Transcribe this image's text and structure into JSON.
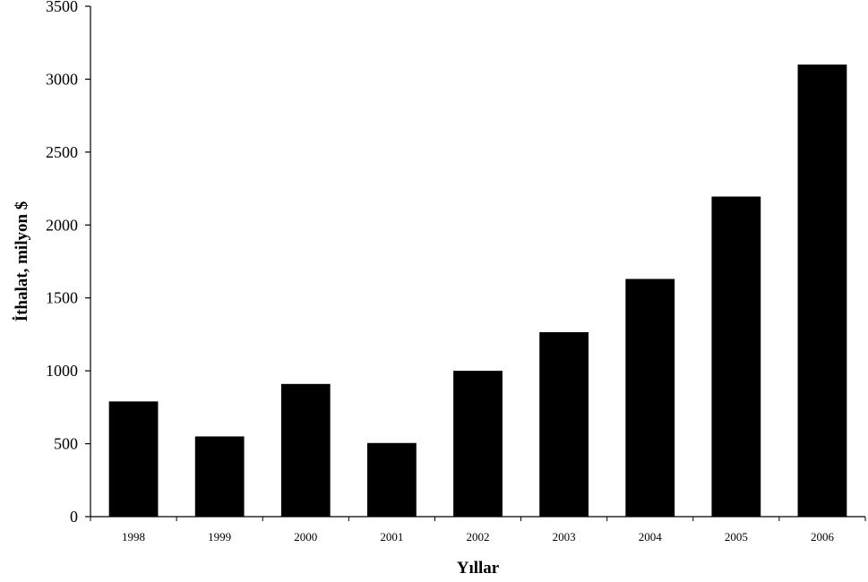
{
  "chart_data": {
    "type": "bar",
    "title": "",
    "xlabel": "Yıllar",
    "ylabel": "İthalat, milyon $",
    "categories": [
      "1998",
      "1999",
      "2000",
      "2001",
      "2002",
      "2003",
      "2004",
      "2005",
      "2006"
    ],
    "values": [
      790,
      550,
      910,
      505,
      1000,
      1265,
      1630,
      2195,
      3100
    ],
    "ylim": [
      0,
      3500
    ],
    "yticks": [
      0,
      500,
      1000,
      1500,
      2000,
      2500,
      3000,
      3500
    ],
    "grid": false,
    "legend": "none",
    "bar_color": "#000000"
  }
}
